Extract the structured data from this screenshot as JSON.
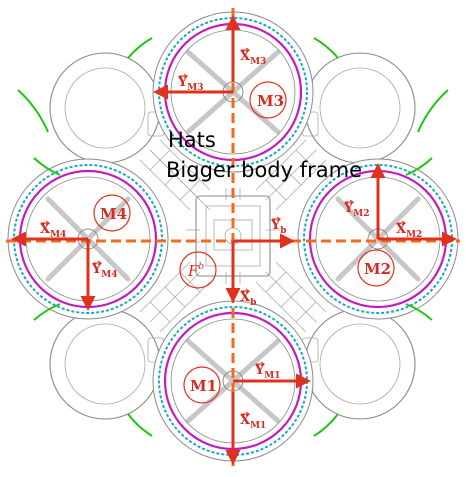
{
  "annotations": {
    "line1": "Hats",
    "line2": "Bigger body frame"
  },
  "labels": {
    "m1": "M1",
    "m2": "M2",
    "m3": "M3",
    "m4": "M4",
    "x_m1": "X",
    "x_m1_sub": "M1",
    "y_m1": "Y",
    "y_m1_sub": "M1",
    "x_m2": "X",
    "x_m2_sub": "M2",
    "y_m2": "Y",
    "y_m2_sub": "M2",
    "x_m3": "X",
    "x_m3_sub": "M3",
    "y_m3": "Y",
    "y_m3_sub": "M3",
    "x_m4": "X",
    "x_m4_sub": "M4",
    "y_m4": "Y",
    "y_m4_sub": "M4",
    "x_b": "X",
    "x_b_sub": "b",
    "y_b": "Y",
    "y_b_sub": "b",
    "frame_b": "F",
    "frame_b_sup": "b"
  },
  "colors": {
    "axis_red": "#e0301e",
    "dash_orange": "#f26a1b",
    "ring_magenta": "#c21bc4",
    "ring_cyan": "#19a7c9",
    "arc_green": "#22c414",
    "frame_gray": "#8a8a8a"
  }
}
